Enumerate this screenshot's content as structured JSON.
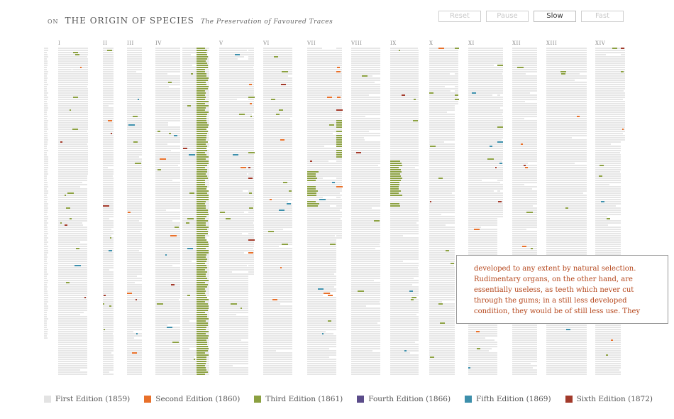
{
  "title": {
    "prefix": "ON",
    "main": "THE ORIGIN OF SPECIES",
    "subtitle": "The Preservation of Favoured Traces"
  },
  "controls": [
    {
      "label": "Reset",
      "active": false
    },
    {
      "label": "Pause",
      "active": false
    },
    {
      "label": "Slow",
      "active": true
    },
    {
      "label": "Fast",
      "active": false
    }
  ],
  "chapters": [
    "I",
    "II",
    "III",
    "IV",
    "V",
    "VI",
    "VII",
    "VIII",
    "IX",
    "X",
    "XI",
    "XII",
    "XIII",
    "XIV"
  ],
  "popup": {
    "lines": [
      "developed to any extent by natural selection.",
      "Rudimentary organs, on the other hand, are",
      "essentially useless, as teeth which never cut",
      "through the gums; in a still less developed",
      "condition, they would be of still less use. They"
    ]
  },
  "legend": [
    {
      "label": "First Edition (1859)",
      "color": "#e3e3e3"
    },
    {
      "label": "Second Edition (1860)",
      "color": "#e8702a"
    },
    {
      "label": "Third Edition (1861)",
      "color": "#8ba041"
    },
    {
      "label": "Fourth Edition (1866)",
      "color": "#5b4c8a"
    },
    {
      "label": "Fifth Edition (1869)",
      "color": "#3d8fab"
    },
    {
      "label": "Sixth Edition (1872)",
      "color": "#a23a2b"
    }
  ]
}
